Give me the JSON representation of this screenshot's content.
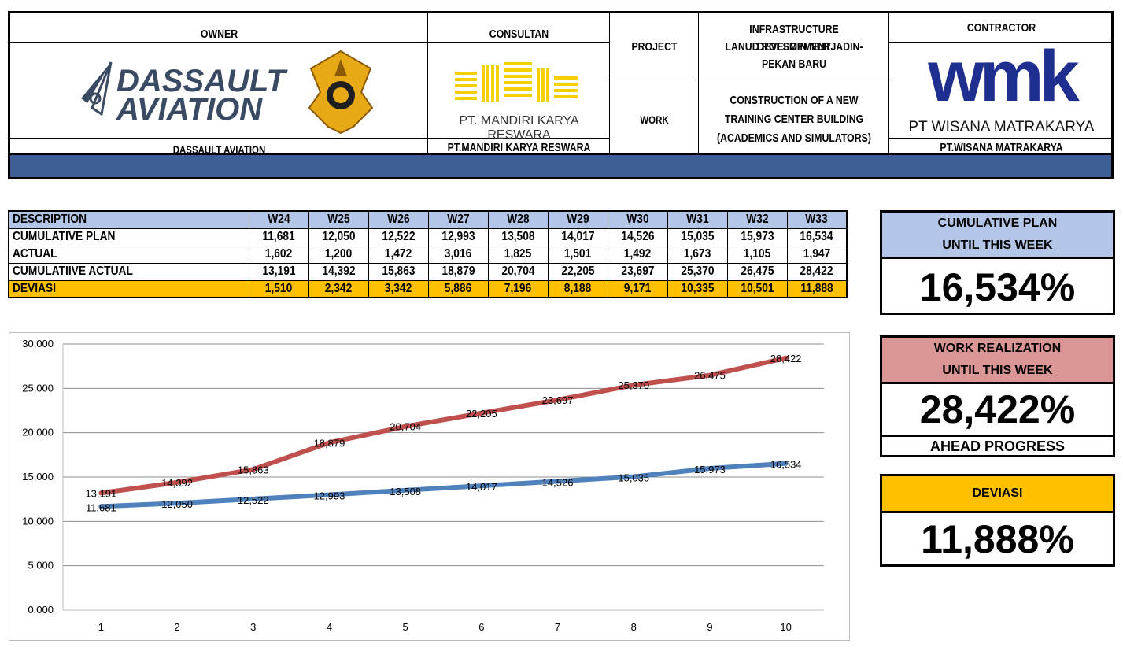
{
  "header": {
    "owner_title": "OWNER",
    "owner_logo_line1": "DASSAULT",
    "owner_logo_line2": "AVIATION",
    "owner_name": "DASSAULT AVIATION",
    "consultant_title": "CONSULTAN",
    "consultant_logo_text": "PT. MANDIRI KARYA RESWARA",
    "consultant_name": "PT.MANDIRI KARYA RESWARA",
    "project_label": "PROJECT",
    "project_line1": "INFRASTRUCTURE DEVELOPMENT",
    "project_line2": "LANUD ROESMIN NURJADIN-",
    "project_line3": "PEKAN BARU",
    "work_label": "WORK",
    "work_line1": "CONSTRUCTION OF A NEW",
    "work_line2": "TRAINING CENTER BUILDING",
    "work_line3": "(ACADEMICS AND SIMULATORS)",
    "contractor_title": "CONTRACTOR",
    "contractor_logo": "wmk",
    "contractor_logo_text": "PT WISANA MATRAKARYA",
    "contractor_name": "PT.WISANA MATRAKARYA"
  },
  "table": {
    "columns": [
      "DESCRIPTION",
      "W24",
      "W25",
      "W26",
      "W27",
      "W28",
      "W29",
      "W30",
      "W31",
      "W32",
      "W33"
    ],
    "rows": [
      {
        "label": "CUMULATIVE PLAN",
        "values": [
          "11,681",
          "12,050",
          "12,522",
          "12,993",
          "13,508",
          "14,017",
          "14,526",
          "15,035",
          "15,973",
          "16,534"
        ]
      },
      {
        "label": "ACTUAL",
        "values": [
          "1,602",
          "1,200",
          "1,472",
          "3,016",
          "1,825",
          "1,501",
          "1,492",
          "1,673",
          "1,105",
          "1,947"
        ]
      },
      {
        "label": "CUMULATIIVE ACTUAL",
        "values": [
          "13,191",
          "14,392",
          "15,863",
          "18,879",
          "20,704",
          "22,205",
          "23,697",
          "25,370",
          "26,475",
          "28,422"
        ]
      },
      {
        "label": "DEVIASI",
        "values": [
          "1,510",
          "2,342",
          "3,342",
          "5,886",
          "7,196",
          "8,188",
          "9,171",
          "10,335",
          "10,501",
          "11,888"
        ]
      }
    ]
  },
  "summary": {
    "plan_title_1": "CUMULATIVE PLAN",
    "plan_title_2": "UNTIL THIS WEEK",
    "plan_value": "16,534%",
    "real_title_1": "WORK REALIZATION",
    "real_title_2": "UNTIL THIS WEEK",
    "real_value": "28,422%",
    "real_status": "AHEAD PROGRESS",
    "dev_title": "DEVIASI",
    "dev_value": "11,888%",
    "colors": {
      "plan_head": "#b4c6e7",
      "real_head": "#da9694",
      "dev_head": "#ffc000"
    }
  },
  "chart_data": {
    "type": "line",
    "x": [
      1,
      2,
      3,
      4,
      5,
      6,
      7,
      8,
      9,
      10
    ],
    "ylim": [
      0,
      30
    ],
    "y_ticks": [
      "0,000",
      "5,000",
      "10,000",
      "15,000",
      "20,000",
      "25,000",
      "30,000"
    ],
    "grid": true,
    "series": [
      {
        "color": "#c0504d",
        "values": [
          13.191,
          14.392,
          15.863,
          18.879,
          20.704,
          22.205,
          23.697,
          25.37,
          26.475,
          28.422
        ],
        "labels": [
          "13,191",
          "14,392",
          "15,863",
          "18,879",
          "20,704",
          "22,205",
          "23,697",
          "25,370",
          "26,475",
          "28,422"
        ]
      },
      {
        "color": "#4f81bd",
        "values": [
          11.681,
          12.05,
          12.522,
          12.993,
          13.508,
          14.017,
          14.526,
          15.035,
          15.973,
          16.534
        ],
        "labels": [
          "11,681",
          "12,050",
          "12,522",
          "12,993",
          "13,508",
          "14,017",
          "14,526",
          "15,035",
          "15,973",
          "16,534"
        ]
      }
    ]
  }
}
